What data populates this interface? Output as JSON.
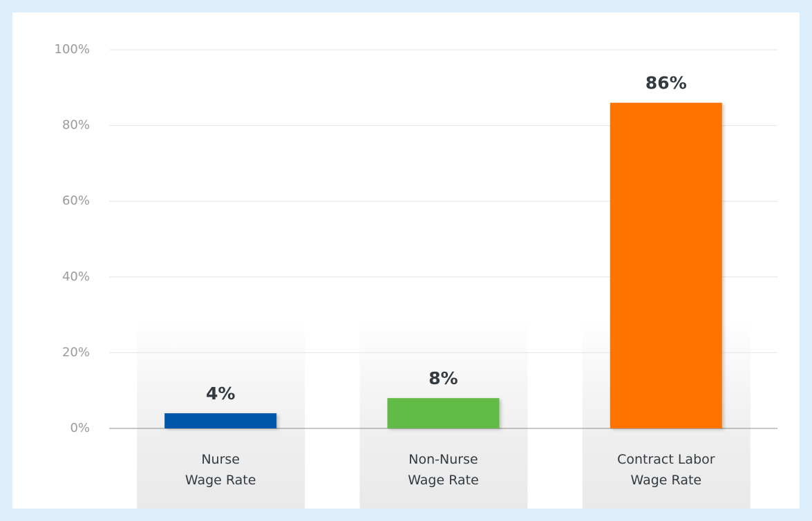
{
  "chart_data": {
    "type": "bar",
    "categories": [
      "Nurse\nWage Rate",
      "Non-Nurse\nWage Rate",
      "Contract Labor\nWage Rate"
    ],
    "values": [
      4,
      8,
      86
    ],
    "value_labels": [
      "4%",
      "8%",
      "86%"
    ],
    "colors": [
      "#0057a8",
      "#62bb46",
      "#ff7300"
    ],
    "ylim": [
      0,
      100
    ],
    "yticks": [
      {
        "value": 0,
        "label": "0%"
      },
      {
        "value": 20,
        "label": "20%"
      },
      {
        "value": 40,
        "label": "40%"
      },
      {
        "value": 60,
        "label": "60%"
      },
      {
        "value": 80,
        "label": "80%"
      },
      {
        "value": 100,
        "label": "100%"
      }
    ],
    "grid": true
  }
}
